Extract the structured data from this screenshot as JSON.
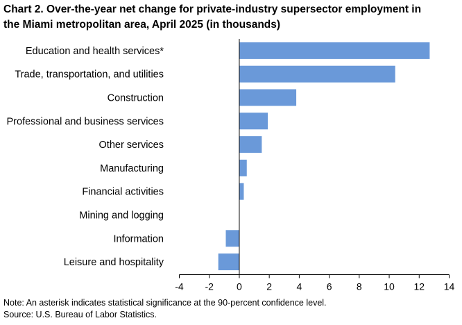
{
  "chart_data": {
    "type": "bar",
    "orientation": "horizontal",
    "title_lines": [
      "Chart 2. Over-the-year net change for private-industry supersector employment in",
      "the Miami metropolitan area, April 2025 (in thousands)"
    ],
    "categories": [
      "Education and health services*",
      "Trade, transportation, and utilities",
      "Construction",
      "Professional and business services",
      "Other services",
      "Manufacturing",
      "Financial activities",
      "Mining and logging",
      "Information",
      "Leisure and hospitality"
    ],
    "values": [
      12.7,
      10.4,
      3.8,
      1.9,
      1.5,
      0.5,
      0.3,
      0.0,
      -0.9,
      -1.4
    ],
    "xlim": [
      -4,
      14
    ],
    "xticks": [
      "-4",
      "-2",
      "0",
      "2",
      "4",
      "6",
      "8",
      "10",
      "12",
      "14"
    ],
    "xlabel": "",
    "ylabel": "",
    "bar_color": "#6a99d9",
    "grid": false,
    "legend": "none"
  },
  "notes": {
    "line1": "Note: An asterisk indicates statistical significance at the 90-percent confidence level.",
    "line2": "Source: U.S. Bureau of Labor Statistics."
  }
}
